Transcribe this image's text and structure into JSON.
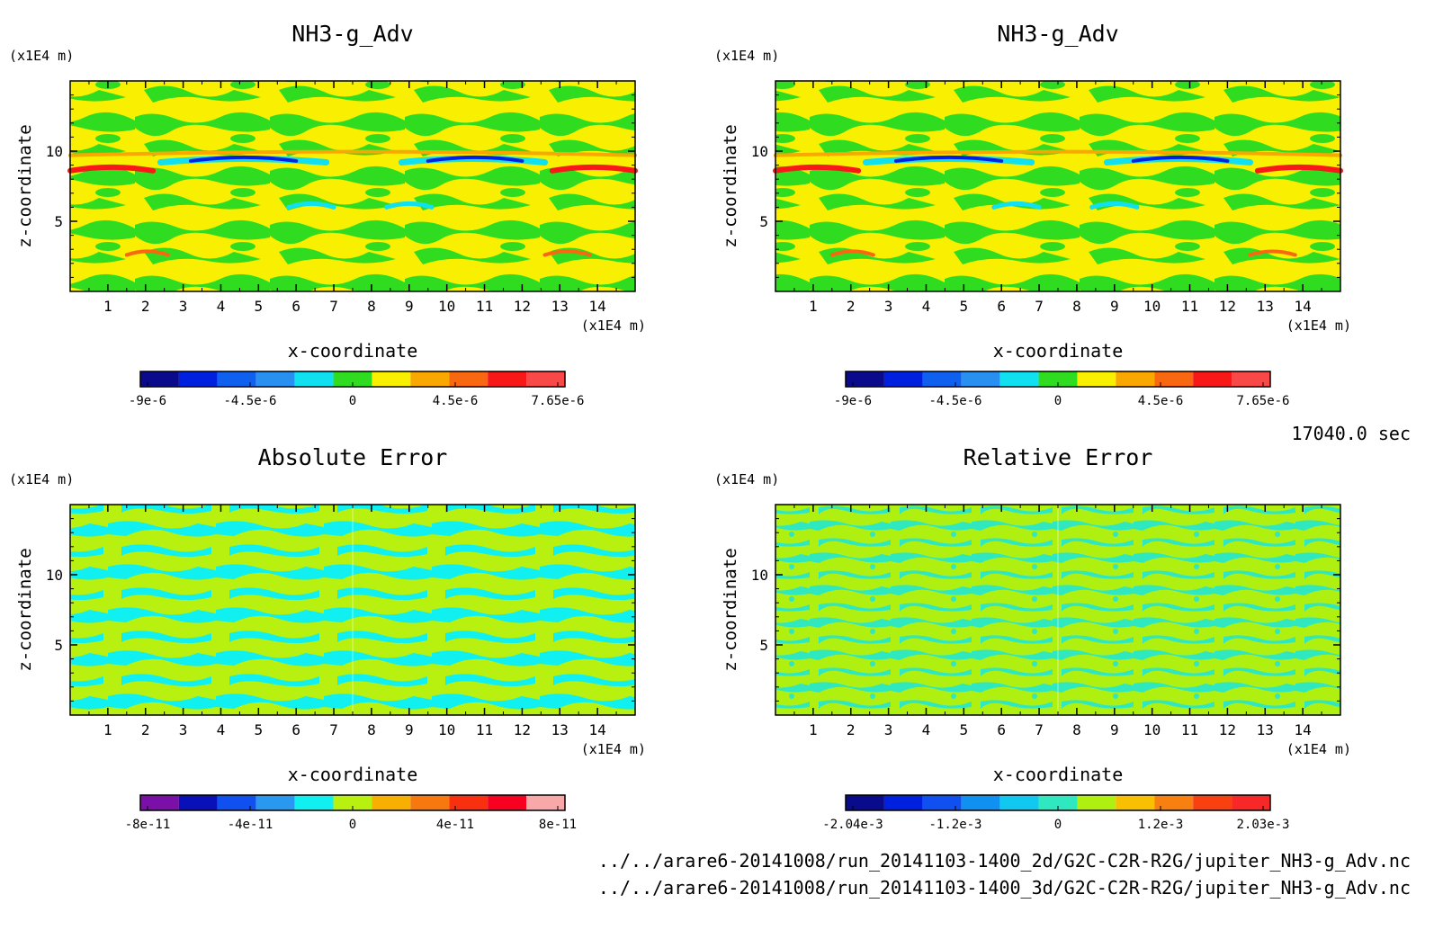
{
  "timestamp": "17040.0 sec",
  "footer_lines": [
    "../../arare6-20141008/run_20141103-1400_2d/G2C-C2R-R2G/jupiter_NH3-g_Adv.nc",
    "../../arare6-20141008/run_20141103-1400_3d/G2C-C2R-R2G/jupiter_NH3-g_Adv.nc"
  ],
  "chart_data": [
    {
      "type": "heatmap",
      "title": "NH3-g_Adv",
      "xlabel": "x-coordinate",
      "ylabel": "z-coordinate",
      "x_unit": "(x1E4 m)",
      "y_unit": "(x1E4 m)",
      "xlim": [
        0,
        15
      ],
      "ylim": [
        0,
        15
      ],
      "x_ticks": [
        1,
        2,
        3,
        4,
        5,
        6,
        7,
        8,
        9,
        10,
        11,
        12,
        13,
        14
      ],
      "y_ticks": [
        5,
        10
      ],
      "colorbar": {
        "colors": [
          "#0a0a8c",
          "#0020e0",
          "#1060f0",
          "#2890f0",
          "#10e0f0",
          "#30dc20",
          "#f8f000",
          "#f8a800",
          "#f86810",
          "#f81818",
          "#f84848"
        ],
        "tick_labels": [
          "-9e-6",
          "-4.5e-6",
          "0",
          "4.5e-6",
          "7.65e-6"
        ]
      }
    },
    {
      "type": "heatmap",
      "title": "NH3-g_Adv",
      "xlabel": "x-coordinate",
      "ylabel": "z-coordinate",
      "x_unit": "(x1E4 m)",
      "y_unit": "(x1E4 m)",
      "xlim": [
        0,
        15
      ],
      "ylim": [
        0,
        15
      ],
      "x_ticks": [
        1,
        2,
        3,
        4,
        5,
        6,
        7,
        8,
        9,
        10,
        11,
        12,
        13,
        14
      ],
      "y_ticks": [
        5,
        10
      ],
      "colorbar": {
        "colors": [
          "#0a0a8c",
          "#0020e0",
          "#1060f0",
          "#2890f0",
          "#10e0f0",
          "#30dc20",
          "#f8f000",
          "#f8a800",
          "#f86810",
          "#f81818",
          "#f84848"
        ],
        "tick_labels": [
          "-9e-6",
          "-4.5e-6",
          "0",
          "4.5e-6",
          "7.65e-6"
        ]
      }
    },
    {
      "type": "heatmap",
      "title": "Absolute Error",
      "xlabel": "x-coordinate",
      "ylabel": "z-coordinate",
      "x_unit": "(x1E4 m)",
      "y_unit": "(x1E4 m)",
      "xlim": [
        0,
        15
      ],
      "ylim": [
        0,
        15
      ],
      "x_ticks": [
        1,
        2,
        3,
        4,
        5,
        6,
        7,
        8,
        9,
        10,
        11,
        12,
        13,
        14
      ],
      "y_ticks": [
        5,
        10
      ],
      "colorbar": {
        "colors": [
          "#7a10a8",
          "#0a10b8",
          "#1050f0",
          "#2898f0",
          "#10f0f0",
          "#b8f010",
          "#f8b000",
          "#f87810",
          "#f83010",
          "#f80020",
          "#f8a8a8"
        ],
        "tick_labels": [
          "-8e-11",
          "-4e-11",
          "0",
          "4e-11",
          "8e-11"
        ]
      }
    },
    {
      "type": "heatmap",
      "title": "Relative Error",
      "xlabel": "x-coordinate",
      "ylabel": "z-coordinate",
      "x_unit": "(x1E4 m)",
      "y_unit": "(x1E4 m)",
      "xlim": [
        0,
        15
      ],
      "ylim": [
        0,
        15
      ],
      "x_ticks": [
        1,
        2,
        3,
        4,
        5,
        6,
        7,
        8,
        9,
        10,
        11,
        12,
        13,
        14
      ],
      "y_ticks": [
        5,
        10
      ],
      "colorbar": {
        "colors": [
          "#0a0a8c",
          "#0020e0",
          "#1050f0",
          "#1090f0",
          "#10c8f0",
          "#30e8c0",
          "#b0f010",
          "#f8c000",
          "#f88010",
          "#f84010",
          "#f82828"
        ],
        "tick_labels": [
          "-2.04e-3",
          "-1.2e-3",
          "0",
          "1.2e-3",
          "2.03e-3"
        ]
      }
    }
  ]
}
